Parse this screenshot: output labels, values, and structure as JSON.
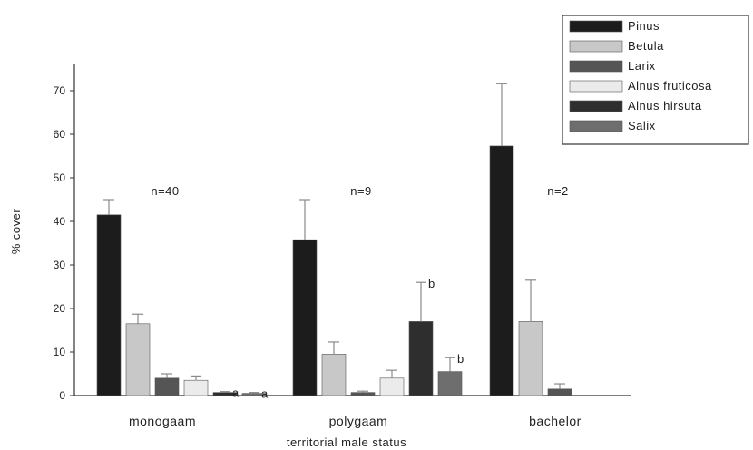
{
  "chart_data": {
    "type": "bar",
    "xlabel": "territorial male status",
    "ylabel": "% cover",
    "ylim": [
      0,
      75
    ],
    "yticks": [
      0,
      10,
      20,
      30,
      40,
      50,
      60,
      70
    ],
    "grid": false,
    "legend_position": "top-right",
    "categories": [
      "monogaam",
      "polygaam",
      "bachelor"
    ],
    "sample_sizes": [
      "n=40",
      "n=9",
      "n=2"
    ],
    "series": [
      {
        "name": "Pinus",
        "color": "#1c1c1c",
        "values": [
          41.5,
          35.8,
          57.3
        ],
        "errors": [
          3.5,
          9.2,
          14.3
        ],
        "annotations": [
          "",
          "",
          ""
        ]
      },
      {
        "name": "Betula",
        "color": "#c8c8c8",
        "values": [
          16.5,
          9.5,
          17.0
        ],
        "errors": [
          2.2,
          2.8,
          9.5
        ],
        "annotations": [
          "",
          "",
          ""
        ]
      },
      {
        "name": "Larix",
        "color": "#555555",
        "values": [
          4.0,
          0.7,
          1.5
        ],
        "errors": [
          1.0,
          0.3,
          1.2
        ],
        "annotations": [
          "",
          "",
          ""
        ]
      },
      {
        "name": "Alnus fruticosa",
        "color": "#ebebeb",
        "values": [
          3.5,
          4.0,
          0.0
        ],
        "errors": [
          1.0,
          1.8,
          0.0
        ],
        "annotations": [
          "",
          "",
          ""
        ]
      },
      {
        "name": "Alnus hirsuta",
        "color": "#2e2e2e",
        "values": [
          0.7,
          17.0,
          0.0
        ],
        "errors": [
          0.2,
          9.0,
          0.0
        ],
        "annotations": [
          "a",
          "b",
          ""
        ]
      },
      {
        "name": "Salix",
        "color": "#6e6e6e",
        "values": [
          0.5,
          5.5,
          0.0
        ],
        "errors": [
          0.2,
          3.2,
          0.0
        ],
        "annotations": [
          "a",
          "b",
          ""
        ]
      }
    ]
  }
}
